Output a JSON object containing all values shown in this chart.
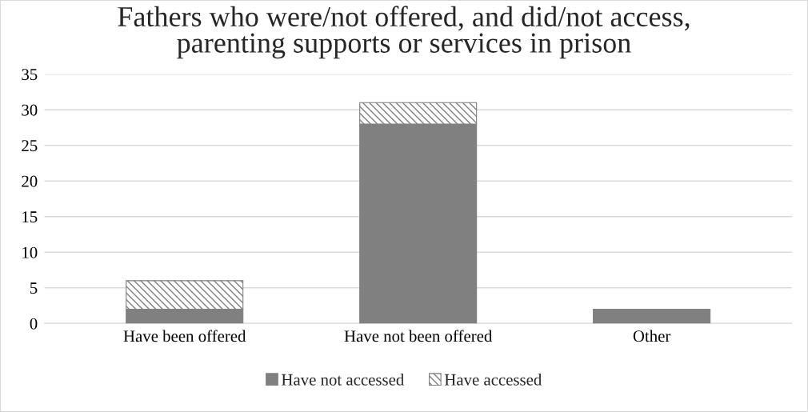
{
  "chart_data": {
    "type": "bar",
    "title": "Fathers who were/not offered, and did/not access,\nparenting supports or services in prison",
    "categories": [
      "Have been offered",
      "Have not been offered",
      "Other"
    ],
    "series": [
      {
        "name": "Have not accessed",
        "color": "#808080",
        "values": [
          2,
          28,
          2
        ]
      },
      {
        "name": "Have accessed",
        "color": "#808080",
        "values": [
          4,
          3,
          0
        ]
      }
    ],
    "stacked": true,
    "ylim": [
      0,
      35
    ],
    "yticks": [
      0,
      5,
      10,
      15,
      20,
      25,
      30,
      35
    ],
    "grid": "y",
    "legend": "bottom"
  }
}
